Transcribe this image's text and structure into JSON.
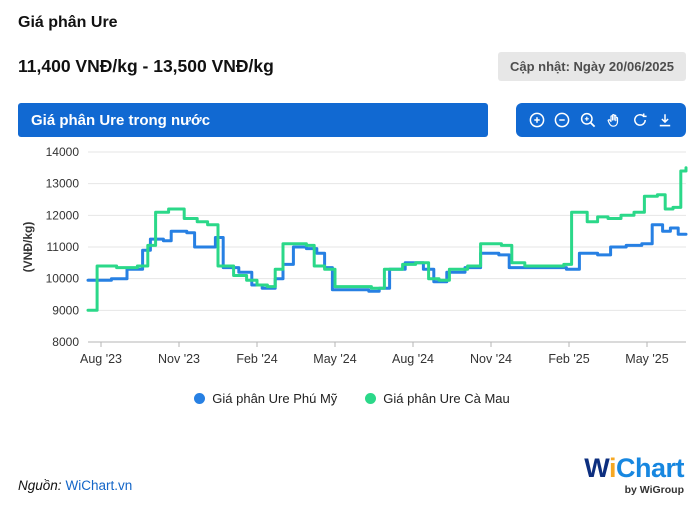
{
  "header": {
    "title": "Giá phân Ure",
    "price_range": "11,400 VNĐ/kg - 13,500 VNĐ/kg",
    "updated": "Cập nhật: Ngày 20/06/2025"
  },
  "chart_header": {
    "title": "Giá phân Ure trong nước",
    "toolbar_icons": [
      "zoom-in-icon",
      "zoom-out-icon",
      "zoom-select-icon",
      "pan-icon",
      "reset-zoom-icon",
      "download-icon"
    ]
  },
  "colors": {
    "header_bar_blue": "#1169D2",
    "series_phu_my_blue": "#2780E3",
    "series_ca_mau_green": "#2BD889",
    "link_blue": "#1466C8",
    "badge_bg": "#E7E7E7",
    "grid_line": "#E6E6E6"
  },
  "chart_data": {
    "type": "line",
    "step": true,
    "title": "Giá phân Ure trong nước",
    "xlabel": "",
    "ylabel": "(VNĐ/kg)",
    "ylim": [
      8000,
      14000
    ],
    "yticks": [
      8000,
      9000,
      10000,
      11000,
      12000,
      13000,
      14000
    ],
    "x_unit": "months since mid-Jul 2023 (fractional)",
    "xlim": [
      0,
      23
    ],
    "xticks": [
      {
        "x": 0.5,
        "label": "Aug '23"
      },
      {
        "x": 3.5,
        "label": "Nov '23"
      },
      {
        "x": 6.5,
        "label": "Feb '24"
      },
      {
        "x": 9.5,
        "label": "May '24"
      },
      {
        "x": 12.5,
        "label": "Aug '24"
      },
      {
        "x": 15.5,
        "label": "Nov '24"
      },
      {
        "x": 18.5,
        "label": "Feb '25"
      },
      {
        "x": 21.5,
        "label": "May '25"
      }
    ],
    "legend_position": "bottom",
    "grid": "horizontal-only",
    "series": [
      {
        "name": "Giá phân Ure Phú Mỹ",
        "color": "#2780E3",
        "points": [
          [
            0.0,
            9950
          ],
          [
            0.9,
            10000
          ],
          [
            1.5,
            10300
          ],
          [
            2.1,
            10900
          ],
          [
            2.4,
            11250
          ],
          [
            2.9,
            11200
          ],
          [
            3.2,
            11500
          ],
          [
            3.8,
            11450
          ],
          [
            4.1,
            11000
          ],
          [
            4.9,
            11300
          ],
          [
            5.2,
            10350
          ],
          [
            5.8,
            10200
          ],
          [
            6.3,
            9800
          ],
          [
            6.7,
            9700
          ],
          [
            7.2,
            10000
          ],
          [
            7.5,
            10450
          ],
          [
            7.9,
            11000
          ],
          [
            8.4,
            10950
          ],
          [
            8.8,
            10800
          ],
          [
            9.1,
            10350
          ],
          [
            9.4,
            9650
          ],
          [
            10.8,
            9600
          ],
          [
            11.2,
            9700
          ],
          [
            11.6,
            10300
          ],
          [
            12.2,
            10500
          ],
          [
            12.9,
            10300
          ],
          [
            13.3,
            9900
          ],
          [
            13.8,
            10200
          ],
          [
            14.5,
            10350
          ],
          [
            15.1,
            10800
          ],
          [
            15.8,
            10750
          ],
          [
            16.2,
            10350
          ],
          [
            18.4,
            10300
          ],
          [
            18.9,
            10800
          ],
          [
            19.6,
            10750
          ],
          [
            20.1,
            11000
          ],
          [
            20.7,
            11050
          ],
          [
            21.3,
            11100
          ],
          [
            21.7,
            11700
          ],
          [
            22.1,
            11500
          ],
          [
            22.4,
            11600
          ],
          [
            22.7,
            11400
          ],
          [
            23.0,
            11400
          ]
        ]
      },
      {
        "name": "Giá phân Ure Cà Mau",
        "color": "#2BD889",
        "points": [
          [
            0.0,
            9000
          ],
          [
            0.35,
            10400
          ],
          [
            1.1,
            10350
          ],
          [
            1.9,
            10400
          ],
          [
            2.3,
            11050
          ],
          [
            2.6,
            12100
          ],
          [
            3.1,
            12200
          ],
          [
            3.7,
            11900
          ],
          [
            4.2,
            11800
          ],
          [
            4.6,
            11700
          ],
          [
            5.0,
            10400
          ],
          [
            5.6,
            10100
          ],
          [
            6.1,
            9950
          ],
          [
            6.5,
            9800
          ],
          [
            6.9,
            9750
          ],
          [
            7.2,
            10300
          ],
          [
            7.5,
            11100
          ],
          [
            8.4,
            11050
          ],
          [
            8.7,
            10400
          ],
          [
            9.1,
            10300
          ],
          [
            9.5,
            9750
          ],
          [
            10.9,
            9700
          ],
          [
            11.4,
            10300
          ],
          [
            12.1,
            10450
          ],
          [
            12.6,
            10500
          ],
          [
            13.1,
            10000
          ],
          [
            13.5,
            9950
          ],
          [
            13.9,
            10300
          ],
          [
            14.6,
            10400
          ],
          [
            15.1,
            11100
          ],
          [
            15.9,
            11050
          ],
          [
            16.3,
            10500
          ],
          [
            16.8,
            10400
          ],
          [
            18.3,
            10450
          ],
          [
            18.6,
            12100
          ],
          [
            19.2,
            11800
          ],
          [
            19.6,
            11950
          ],
          [
            20.0,
            11900
          ],
          [
            20.5,
            12000
          ],
          [
            21.0,
            12100
          ],
          [
            21.4,
            12600
          ],
          [
            21.9,
            12650
          ],
          [
            22.2,
            12200
          ],
          [
            22.5,
            12250
          ],
          [
            22.8,
            13400
          ],
          [
            23.0,
            13500
          ]
        ]
      }
    ]
  },
  "footer": {
    "source_label": "Nguồn:",
    "source_link": "WiChart.vn",
    "logo_w": "W",
    "logo_i": "i",
    "logo_chart": "Chart",
    "logo_sub": "by WiGroup"
  }
}
